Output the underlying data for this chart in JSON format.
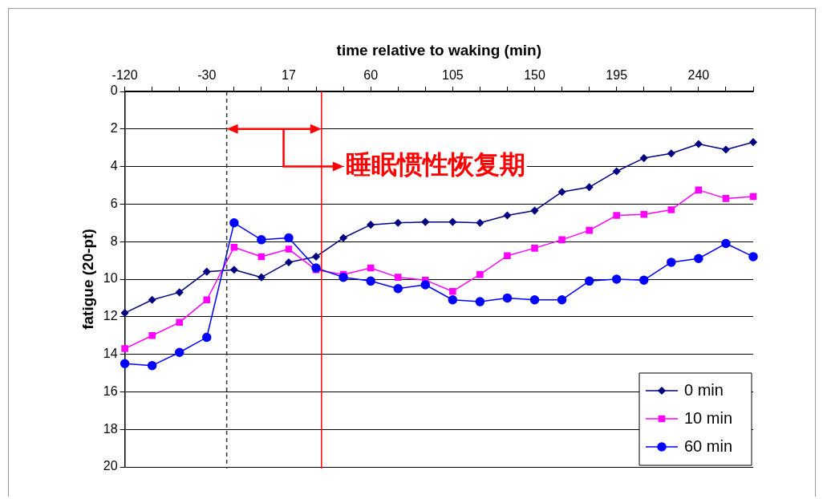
{
  "chart_data": {
    "type": "line",
    "xlabel": "time relative to waking (min)",
    "ylabel": "fatigue (20-pt)",
    "categories": [
      "-120",
      null,
      null,
      "-30",
      null,
      null,
      "17",
      null,
      null,
      "60",
      null,
      null,
      "105",
      null,
      null,
      "150",
      null,
      null,
      "195",
      null,
      null,
      "240",
      null,
      null
    ],
    "series": [
      {
        "name": "0 min",
        "color": "#000080",
        "marker": "diamond",
        "values": [
          11.8,
          11.1,
          10.7,
          9.6,
          9.5,
          9.9,
          9.1,
          8.8,
          7.8,
          7.1,
          7.0,
          6.95,
          6.95,
          7.0,
          6.6,
          6.35,
          5.35,
          5.1,
          4.25,
          3.55,
          3.3,
          2.8,
          3.1,
          2.7
        ]
      },
      {
        "name": "10 min",
        "color": "#ff00ff",
        "marker": "square",
        "values": [
          13.7,
          13.0,
          12.3,
          11.1,
          8.3,
          8.8,
          8.4,
          9.5,
          9.75,
          9.4,
          9.9,
          10.05,
          10.65,
          9.75,
          8.75,
          8.35,
          7.9,
          7.4,
          6.6,
          6.55,
          6.3,
          5.25,
          5.7,
          5.6
        ]
      },
      {
        "name": "60 min",
        "color": "#0000ff",
        "marker": "circle",
        "values": [
          14.5,
          14.6,
          13.9,
          13.1,
          7.0,
          7.9,
          7.8,
          9.4,
          9.9,
          10.1,
          10.5,
          10.3,
          11.1,
          11.2,
          11.0,
          11.1,
          11.1,
          10.1,
          10.0,
          10.05,
          9.1,
          8.9,
          8.1,
          8.8
        ]
      }
    ],
    "ylim": [
      20,
      0
    ],
    "yticks": [
      0,
      2,
      4,
      6,
      8,
      10,
      12,
      14,
      16,
      18,
      20
    ],
    "grid": "y",
    "legend": "bottom right",
    "line_style": "solid",
    "annotations": [
      "睡眠惯性恢复期"
    ]
  }
}
